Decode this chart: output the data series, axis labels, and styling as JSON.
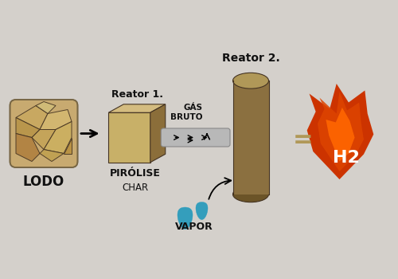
{
  "bg_color": "#d4d0cb",
  "lodo_label": "LODO",
  "reator1_label": "Reator 1.",
  "pirolise_label": "PIRÓLISE",
  "char_label": "CHAR",
  "gas_label": "GÁS\nBRUTO",
  "reator2_label": "Reator 2.",
  "vapor_label": "VAPOR",
  "h2_label": "H2",
  "box_front_color": "#c8b068",
  "box_top_color": "#d4bc80",
  "box_side_color": "#8b6e3a",
  "cylinder_body_color": "#8b7040",
  "cylinder_top_color": "#b09858",
  "cylinder_shadow_color": "#6b5428",
  "pipe_color": "#b8b8b8",
  "pipe_edge_color": "#888888",
  "flame_outer_color": "#cc3300",
  "flame_mid_color": "#dd4400",
  "flame_inner_color": "#ff6600",
  "drop_color": "#2299bb",
  "equals_color": "#b09858",
  "text_color": "#111111",
  "lodo_base": "#c8aa70",
  "lodo_dark": "#8b6a30",
  "lodo_light": "#e8d4a0"
}
